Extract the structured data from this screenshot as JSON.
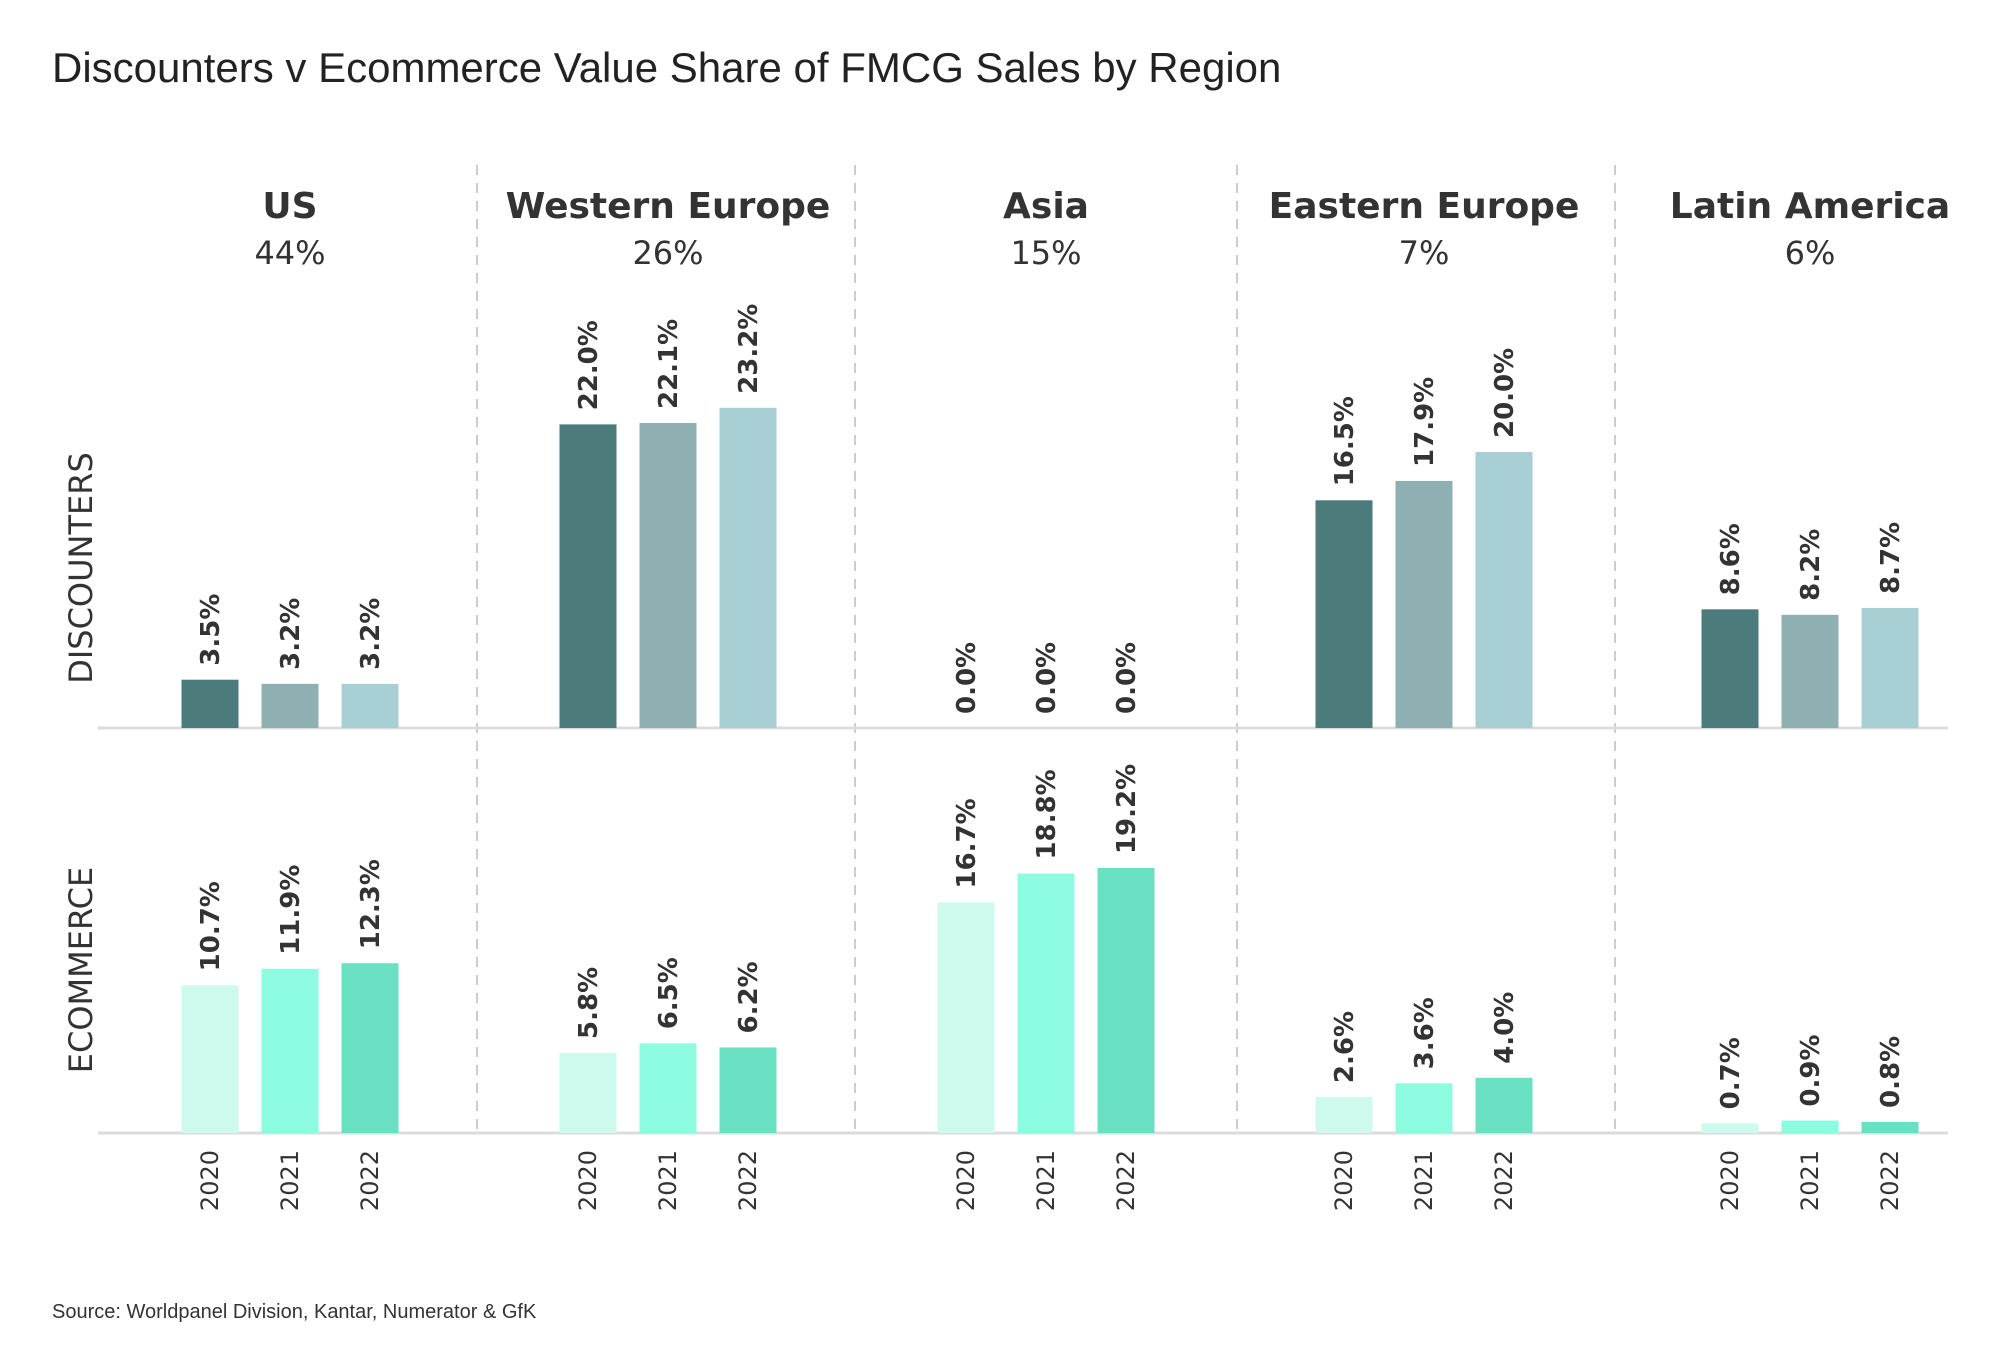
{
  "chart_data": {
    "type": "bar",
    "title": "Discounters v Ecommerce Value Share of FMCG Sales by Region",
    "source": "Source: Worldpanel Division, Kantar, Numerator & GfK",
    "row_labels": [
      "DISCOUNTERS",
      "ECOMMERCE"
    ],
    "years": [
      "2020",
      "2021",
      "2022"
    ],
    "regions": [
      {
        "name": "US",
        "share": "44%",
        "discounters": [
          3.5,
          3.2,
          3.2
        ],
        "discounters_labels": [
          "3.5%",
          "3.2%",
          "3.2%"
        ],
        "ecommerce": [
          10.7,
          11.9,
          12.3
        ],
        "ecommerce_labels": [
          "10.7%",
          "11.9%",
          "12.3%"
        ]
      },
      {
        "name": "Western Europe",
        "share": "26%",
        "discounters": [
          22.0,
          22.1,
          23.2
        ],
        "discounters_labels": [
          "22.0%",
          "22.1%",
          "23.2%"
        ],
        "ecommerce": [
          5.8,
          6.5,
          6.2
        ],
        "ecommerce_labels": [
          "5.8%",
          "6.5%",
          "6.2%"
        ]
      },
      {
        "name": "Asia",
        "share": "15%",
        "discounters": [
          0.0,
          0.0,
          0.0
        ],
        "discounters_labels": [
          "0.0%",
          "0.0%",
          "0.0%"
        ],
        "ecommerce": [
          16.7,
          18.8,
          19.2
        ],
        "ecommerce_labels": [
          "16.7%",
          "18.8%",
          "19.2%"
        ]
      },
      {
        "name": "Eastern Europe",
        "share": "7%",
        "discounters": [
          16.5,
          17.9,
          20.0
        ],
        "discounters_labels": [
          "16.5%",
          "17.9%",
          "20.0%"
        ],
        "ecommerce": [
          2.6,
          3.6,
          4.0
        ],
        "ecommerce_labels": [
          "2.6%",
          "3.6%",
          "4.0%"
        ]
      },
      {
        "name": "Latin America",
        "share": "6%",
        "discounters": [
          8.6,
          8.2,
          8.7
        ],
        "discounters_labels": [
          "8.6%",
          "8.2%",
          "8.7%"
        ],
        "ecommerce": [
          0.7,
          0.9,
          0.8
        ],
        "ecommerce_labels": [
          "0.7%",
          "0.9%",
          "0.8%"
        ]
      }
    ],
    "colors": {
      "discounters": [
        "#4b7b7b",
        "#8fb0b2",
        "#a8d0d4"
      ],
      "ecommerce": [
        "#cdf9ee",
        "#8cfbe0",
        "#69e0c2"
      ],
      "baseline": "#dcdcdc",
      "divider": "#cccccc"
    },
    "grid": false,
    "legend": "none"
  }
}
